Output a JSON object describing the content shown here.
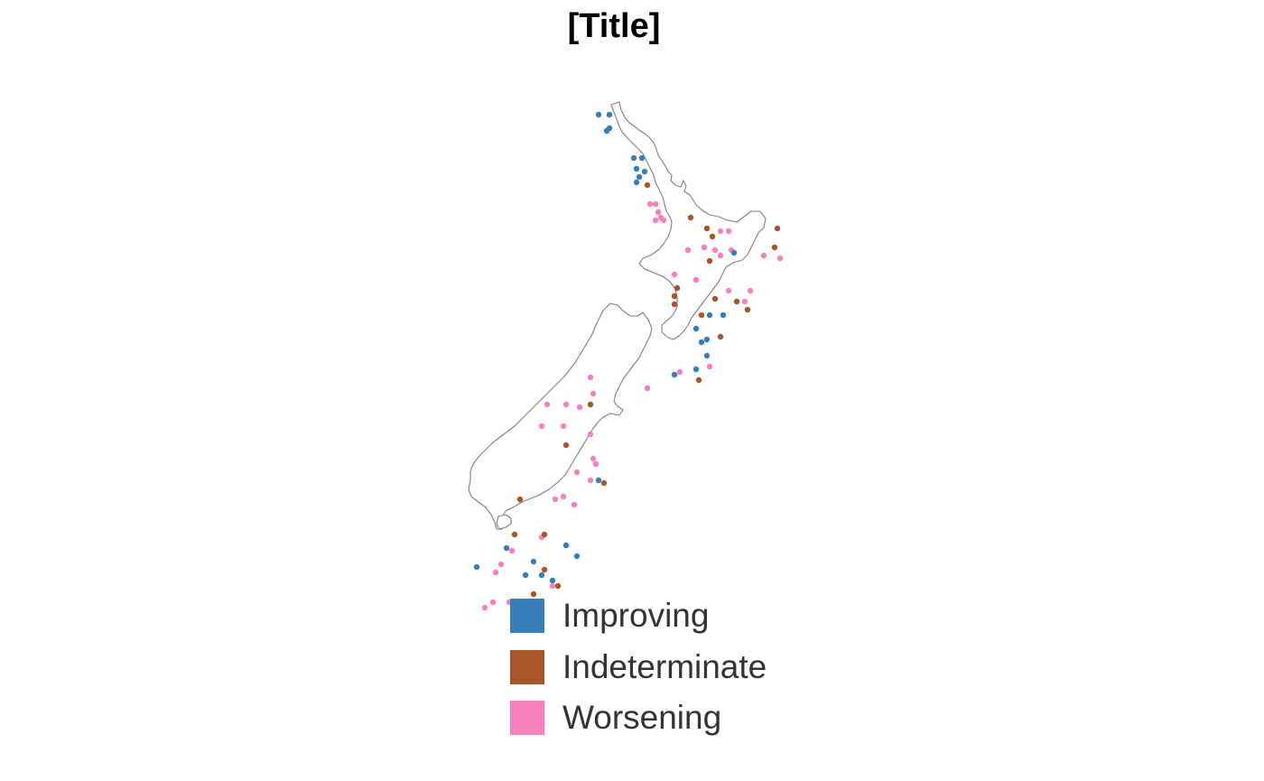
{
  "title": "[Title]",
  "legend": {
    "items": [
      {
        "key": "improving",
        "label": "Improving",
        "color": "#377EB8"
      },
      {
        "key": "indeterminate",
        "label": "Indeterminate",
        "color": "#A65628"
      },
      {
        "key": "worsening",
        "label": "Worsening",
        "color": "#F781BF"
      }
    ]
  },
  "map": {
    "region": "New Zealand",
    "outline_color": "#7F7F7F",
    "sites": [
      {
        "lon": 173.05,
        "lat": -34.95,
        "status": "improving"
      },
      {
        "lon": 173.25,
        "lat": -34.95,
        "status": "improving"
      },
      {
        "lon": 173.2,
        "lat": -35.25,
        "status": "improving"
      },
      {
        "lon": 173.25,
        "lat": -35.2,
        "status": "improving"
      },
      {
        "lon": 173.7,
        "lat": -35.75,
        "status": "improving"
      },
      {
        "lon": 173.85,
        "lat": -35.75,
        "status": "improving"
      },
      {
        "lon": 173.75,
        "lat": -35.95,
        "status": "improving"
      },
      {
        "lon": 173.9,
        "lat": -36.0,
        "status": "improving"
      },
      {
        "lon": 173.8,
        "lat": -36.1,
        "status": "improving"
      },
      {
        "lon": 173.75,
        "lat": -36.2,
        "status": "improving"
      },
      {
        "lon": 173.95,
        "lat": -36.25,
        "status": "indeterminate"
      },
      {
        "lon": 174.0,
        "lat": -36.6,
        "status": "worsening"
      },
      {
        "lon": 174.1,
        "lat": -36.6,
        "status": "worsening"
      },
      {
        "lon": 174.15,
        "lat": -36.75,
        "status": "worsening"
      },
      {
        "lon": 174.2,
        "lat": -36.85,
        "status": "worsening"
      },
      {
        "lon": 174.1,
        "lat": -36.9,
        "status": "worsening"
      },
      {
        "lon": 174.25,
        "lat": -36.9,
        "status": "worsening"
      },
      {
        "lon": 174.75,
        "lat": -36.85,
        "status": "indeterminate"
      },
      {
        "lon": 175.05,
        "lat": -37.05,
        "status": "indeterminate"
      },
      {
        "lon": 175.45,
        "lat": -37.1,
        "status": "worsening"
      },
      {
        "lon": 175.3,
        "lat": -37.1,
        "status": "worsening"
      },
      {
        "lon": 175.15,
        "lat": -37.2,
        "status": "indeterminate"
      },
      {
        "lon": 176.35,
        "lat": -37.05,
        "status": "indeterminate"
      },
      {
        "lon": 176.3,
        "lat": -37.4,
        "status": "indeterminate"
      },
      {
        "lon": 176.4,
        "lat": -37.6,
        "status": "worsening"
      },
      {
        "lon": 176.1,
        "lat": -37.55,
        "status": "worsening"
      },
      {
        "lon": 175.55,
        "lat": -37.5,
        "status": "improving"
      },
      {
        "lon": 175.5,
        "lat": -37.45,
        "status": "worsening"
      },
      {
        "lon": 175.3,
        "lat": -37.55,
        "status": "worsening"
      },
      {
        "lon": 175.2,
        "lat": -37.45,
        "status": "worsening"
      },
      {
        "lon": 175.0,
        "lat": -37.4,
        "status": "worsening"
      },
      {
        "lon": 174.7,
        "lat": -37.45,
        "status": "worsening"
      },
      {
        "lon": 175.1,
        "lat": -37.65,
        "status": "indeterminate"
      },
      {
        "lon": 174.45,
        "lat": -37.9,
        "status": "worsening"
      },
      {
        "lon": 174.85,
        "lat": -38.0,
        "status": "worsening"
      },
      {
        "lon": 175.45,
        "lat": -38.2,
        "status": "worsening"
      },
      {
        "lon": 175.85,
        "lat": -38.2,
        "status": "worsening"
      },
      {
        "lon": 175.2,
        "lat": -38.35,
        "status": "indeterminate"
      },
      {
        "lon": 175.6,
        "lat": -38.4,
        "status": "indeterminate"
      },
      {
        "lon": 175.8,
        "lat": -38.55,
        "status": "indeterminate"
      },
      {
        "lon": 175.75,
        "lat": -38.4,
        "status": "worsening"
      },
      {
        "lon": 174.45,
        "lat": -38.45,
        "status": "indeterminate"
      },
      {
        "lon": 174.45,
        "lat": -38.3,
        "status": "indeterminate"
      },
      {
        "lon": 174.5,
        "lat": -38.15,
        "status": "indeterminate"
      },
      {
        "lon": 175.1,
        "lat": -38.65,
        "status": "improving"
      },
      {
        "lon": 175.35,
        "lat": -38.65,
        "status": "improving"
      },
      {
        "lon": 174.95,
        "lat": -38.65,
        "status": "indeterminate"
      },
      {
        "lon": 174.85,
        "lat": -38.9,
        "status": "improving"
      },
      {
        "lon": 174.95,
        "lat": -39.15,
        "status": "improving"
      },
      {
        "lon": 175.05,
        "lat": -39.1,
        "status": "improving"
      },
      {
        "lon": 175.3,
        "lat": -39.05,
        "status": "indeterminate"
      },
      {
        "lon": 175.05,
        "lat": -39.4,
        "status": "improving"
      },
      {
        "lon": 175.1,
        "lat": -39.6,
        "status": "worsening"
      },
      {
        "lon": 174.85,
        "lat": -39.65,
        "status": "improving"
      },
      {
        "lon": 174.45,
        "lat": -39.75,
        "status": "improving"
      },
      {
        "lon": 174.55,
        "lat": -39.7,
        "status": "worsening"
      },
      {
        "lon": 174.9,
        "lat": -39.85,
        "status": "indeterminate"
      },
      {
        "lon": 173.95,
        "lat": -40.0,
        "status": "worsening"
      },
      {
        "lon": 172.9,
        "lat": -39.8,
        "status": "worsening"
      },
      {
        "lon": 172.95,
        "lat": -40.1,
        "status": "worsening"
      },
      {
        "lon": 172.9,
        "lat": -40.3,
        "status": "indeterminate"
      },
      {
        "lon": 172.7,
        "lat": -40.35,
        "status": "worsening"
      },
      {
        "lon": 172.1,
        "lat": -40.3,
        "status": "worsening"
      },
      {
        "lon": 172.45,
        "lat": -40.3,
        "status": "worsening"
      },
      {
        "lon": 172.0,
        "lat": -40.7,
        "status": "worsening"
      },
      {
        "lon": 172.4,
        "lat": -40.7,
        "status": "worsening"
      },
      {
        "lon": 172.9,
        "lat": -40.85,
        "status": "worsening"
      },
      {
        "lon": 172.45,
        "lat": -41.05,
        "status": "indeterminate"
      },
      {
        "lon": 172.95,
        "lat": -41.3,
        "status": "worsening"
      },
      {
        "lon": 172.65,
        "lat": -41.55,
        "status": "worsening"
      },
      {
        "lon": 173.0,
        "lat": -41.4,
        "status": "worsening"
      },
      {
        "lon": 172.9,
        "lat": -41.7,
        "status": "worsening"
      },
      {
        "lon": 173.05,
        "lat": -41.7,
        "status": "improving"
      },
      {
        "lon": 173.15,
        "lat": -41.75,
        "status": "indeterminate"
      },
      {
        "lon": 171.6,
        "lat": -42.05,
        "status": "indeterminate"
      },
      {
        "lon": 172.25,
        "lat": -42.05,
        "status": "worsening"
      },
      {
        "lon": 172.4,
        "lat": -42.0,
        "status": "worsening"
      },
      {
        "lon": 172.6,
        "lat": -42.15,
        "status": "worsening"
      },
      {
        "lon": 171.5,
        "lat": -42.7,
        "status": "indeterminate"
      },
      {
        "lon": 171.35,
        "lat": -42.95,
        "status": "improving"
      },
      {
        "lon": 171.45,
        "lat": -43.0,
        "status": "worsening"
      },
      {
        "lon": 172.05,
        "lat": -42.7,
        "status": "indeterminate"
      },
      {
        "lon": 172.0,
        "lat": -42.75,
        "status": "worsening"
      },
      {
        "lon": 172.45,
        "lat": -42.9,
        "status": "improving"
      },
      {
        "lon": 171.85,
        "lat": -43.2,
        "status": "improving"
      },
      {
        "lon": 172.05,
        "lat": -43.35,
        "status": "indeterminate"
      },
      {
        "lon": 172.0,
        "lat": -43.45,
        "status": "improving"
      },
      {
        "lon": 171.7,
        "lat": -43.45,
        "status": "improving"
      },
      {
        "lon": 172.2,
        "lat": -43.55,
        "status": "improving"
      },
      {
        "lon": 172.2,
        "lat": -43.65,
        "status": "worsening"
      },
      {
        "lon": 172.3,
        "lat": -43.65,
        "status": "indeterminate"
      },
      {
        "lon": 171.25,
        "lat": -43.25,
        "status": "worsening"
      },
      {
        "lon": 171.15,
        "lat": -43.4,
        "status": "worsening"
      },
      {
        "lon": 170.8,
        "lat": -43.3,
        "status": "improving"
      },
      {
        "lon": 171.1,
        "lat": -43.95,
        "status": "worsening"
      },
      {
        "lon": 171.4,
        "lat": -43.95,
        "status": "worsening"
      },
      {
        "lon": 170.95,
        "lat": -44.05,
        "status": "worsening"
      },
      {
        "lon": 171.85,
        "lat": -43.8,
        "status": "indeterminate"
      },
      {
        "lon": 172.65,
        "lat": -43.1,
        "status": "improving"
      }
    ]
  }
}
